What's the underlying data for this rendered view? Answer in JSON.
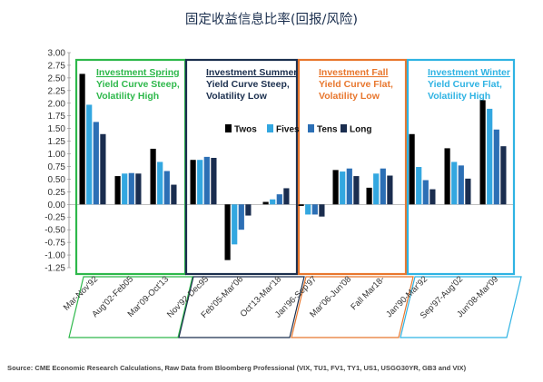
{
  "chart_data": {
    "type": "bar",
    "title": "固定收益信息比率(回报/风险)",
    "source": "Source: CME Economic Research Calculations, Raw Data from Bloomberg Professional (VIX, TU1, FV1, TY1, US1, USGG30YR, GB3 and VIX)",
    "ylim": [
      -1.25,
      3.0
    ],
    "yticks": [
      "3.00",
      "2.75",
      "2.50",
      "2.25",
      "2.00",
      "1.75",
      "1.50",
      "1.25",
      "1.00",
      "0.75",
      "0.50",
      "0.25",
      "0.00",
      "-0.25",
      "-0.50",
      "-0.75",
      "-1.00",
      "-1.25"
    ],
    "grid": false,
    "legend_position": "inside-top-center",
    "series": [
      {
        "name": "Twos",
        "color": "#000000"
      },
      {
        "name": "Fives",
        "color": "#33a7e0"
      },
      {
        "name": "Tens",
        "color": "#2c6fb5"
      },
      {
        "name": "Long",
        "color": "#1a2d4f"
      }
    ],
    "categories": [
      {
        "label": "Mar-Nov'92",
        "values": [
          2.58,
          1.97,
          1.63,
          1.39
        ]
      },
      {
        "label": "Aug'02-Feb05",
        "values": [
          0.56,
          0.61,
          0.62,
          0.61
        ]
      },
      {
        "label": "Mar'09-Oct'13",
        "values": [
          1.1,
          0.84,
          0.66,
          0.39
        ]
      },
      {
        "label": "Nov'92-Dec95",
        "values": [
          0.88,
          0.88,
          0.94,
          0.92
        ]
      },
      {
        "label": "Feb'05-Mar'06",
        "values": [
          -1.1,
          -0.79,
          -0.5,
          -0.22
        ]
      },
      {
        "label": "Oct'13-Mar'18",
        "values": [
          0.05,
          0.1,
          0.2,
          0.32
        ]
      },
      {
        "label": "Jan'96-Sep'97",
        "values": [
          -0.03,
          -0.2,
          -0.2,
          -0.24
        ]
      },
      {
        "label": "Mar'06-Jun'08",
        "values": [
          0.68,
          0.65,
          0.71,
          0.56
        ]
      },
      {
        "label": "Fall Mar18-",
        "values": [
          0.33,
          0.61,
          0.71,
          0.57
        ]
      },
      {
        "label": "Jan'90-Mar'92",
        "values": [
          1.39,
          0.74,
          0.48,
          0.3
        ]
      },
      {
        "label": "Sep'97-Aug'02",
        "values": [
          1.11,
          0.84,
          0.77,
          0.51
        ]
      },
      {
        "label": "Jun'08-Mar'09",
        "values": [
          2.06,
          1.89,
          1.48,
          1.15
        ]
      }
    ],
    "regimes": [
      {
        "title": "Investment Spring",
        "line1": "Yield Curve Steep,",
        "line2": "Volatility High",
        "color": "#2eb84b",
        "title_color": "#2eb84b"
      },
      {
        "title": "Investment Summer",
        "line1": "Yield Curve Steep,",
        "line2": "Volatility Low",
        "color": "#1b2f4e",
        "title_color": "#1b2f4e"
      },
      {
        "title": "Investment Fall",
        "line1": "Yield Curve Flat,",
        "line2": "Volatility Low",
        "color": "#e8772e",
        "title_color": "#e8772e"
      },
      {
        "title": "Investment Winter",
        "line1": "Yield Curve Flat,",
        "line2": "Volatility High",
        "color": "#2fb3e3",
        "title_color": "#2fb3e3"
      }
    ]
  }
}
